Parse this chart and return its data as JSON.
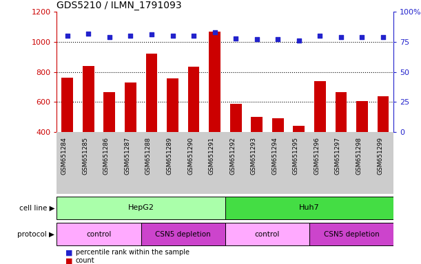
{
  "title": "GDS5210 / ILMN_1791093",
  "samples": [
    "GSM651284",
    "GSM651285",
    "GSM651286",
    "GSM651287",
    "GSM651288",
    "GSM651289",
    "GSM651290",
    "GSM651291",
    "GSM651292",
    "GSM651293",
    "GSM651294",
    "GSM651295",
    "GSM651296",
    "GSM651297",
    "GSM651298",
    "GSM651299"
  ],
  "counts": [
    760,
    840,
    665,
    730,
    920,
    755,
    835,
    1070,
    590,
    500,
    490,
    440,
    740,
    665,
    605,
    640
  ],
  "percentile": [
    80,
    82,
    79,
    80,
    81,
    80,
    80,
    83,
    78,
    77,
    77,
    76,
    80,
    79,
    79,
    79
  ],
  "count_ylim": [
    400,
    1200
  ],
  "count_yticks": [
    400,
    600,
    800,
    1000,
    1200
  ],
  "percentile_ylim": [
    0,
    100
  ],
  "percentile_yticks": [
    0,
    25,
    50,
    75,
    100
  ],
  "percentile_yticklabels": [
    "0",
    "25",
    "50",
    "75",
    "100%"
  ],
  "bar_color": "#cc0000",
  "dot_color": "#2222cc",
  "left_axis_color": "#cc0000",
  "right_axis_color": "#2222cc",
  "cell_line_hepg2_label": "HepG2",
  "cell_line_huh7_label": "Huh7",
  "cell_line_hepg2_color": "#aaffaa",
  "cell_line_huh7_color": "#44dd44",
  "protocol_control_label": "control",
  "protocol_csn5_label": "CSN5 depletion",
  "protocol_control_color": "#ffaaff",
  "protocol_csn5_color": "#cc44cc",
  "cell_line_label": "cell line",
  "protocol_label": "protocol",
  "legend_count": "count",
  "legend_percentile": "percentile rank within the sample",
  "background_color": "#ffffff",
  "tick_label_area_color": "#cccccc",
  "grid_yticks": [
    600,
    800,
    1000
  ],
  "grid_color": "#000000"
}
